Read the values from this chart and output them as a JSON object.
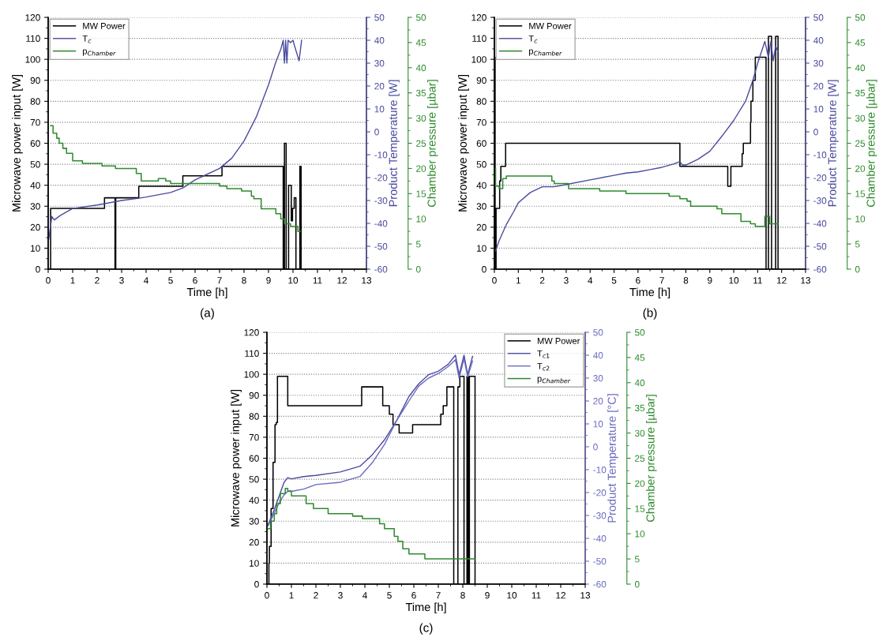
{
  "chart_data": [
    {
      "type": "line",
      "xlabel": "Time [h]",
      "ylabel": "Microwave power input [W]",
      "y2label": "Product Temperature [W]",
      "y3label": "Chamber pressure [µbar]",
      "annotations": [
        "(a)"
      ],
      "xlim": [
        0,
        13
      ],
      "xticks": [
        0,
        1,
        2,
        3,
        4,
        5,
        6,
        7,
        8,
        9,
        10,
        11,
        12,
        13
      ],
      "ylim": [
        0,
        120
      ],
      "yticks": [
        0,
        10,
        20,
        30,
        40,
        50,
        60,
        70,
        80,
        90,
        100,
        110,
        120
      ],
      "y2lim": [
        -60,
        50
      ],
      "y2ticks": [
        -60,
        -50,
        -40,
        -30,
        -20,
        -10,
        0,
        10,
        20,
        30,
        40,
        50
      ],
      "y3lim": [
        0,
        50
      ],
      "y3ticks": [
        0,
        5,
        10,
        15,
        20,
        25,
        30,
        35,
        40,
        45,
        50
      ],
      "grid": "y",
      "legend": "top left",
      "series": [
        {
          "name": "MW Power",
          "type": "step",
          "color": "#000000",
          "x": [
            0,
            0.1,
            2.3,
            2.73,
            2.76,
            3.7,
            5.5,
            7.1,
            9.6,
            9.65,
            9.72,
            9.82,
            9.93,
            9.98,
            10.05,
            10.12,
            10.28,
            10.33
          ],
          "values": [
            0,
            29,
            34,
            0,
            34,
            39.5,
            44.5,
            49,
            0,
            60,
            0,
            40,
            23,
            29,
            34,
            0,
            49,
            0
          ]
        },
        {
          "name": "T$_{c}$",
          "axis": "y2",
          "color": "#4a4aa0",
          "x": [
            0.02,
            0.15,
            0.25,
            0.5,
            1,
            2,
            3,
            3.7,
            4,
            5,
            5.5,
            6,
            7,
            7.5,
            8,
            8.5,
            9,
            9.3,
            9.5,
            9.6,
            9.65,
            9.7,
            9.75,
            9.8,
            9.9,
            10,
            10.05,
            10.25,
            10.35
          ],
          "values": [
            -47,
            -37,
            -38.5,
            -36.5,
            -33.5,
            -32,
            -30,
            -29,
            -28.5,
            -26.5,
            -24.5,
            -21,
            -16,
            -11.5,
            -4,
            6.5,
            20.5,
            30.5,
            36,
            40,
            30,
            40,
            30,
            40,
            39,
            40,
            38,
            31,
            40
          ]
        },
        {
          "name": "p$_{Chamber}$",
          "type": "step",
          "axis": "y3",
          "color": "#2e8b2e",
          "x": [
            0.1,
            0.2,
            0.35,
            0.45,
            0.6,
            0.75,
            1,
            1.4,
            2.2,
            2.75,
            3.6,
            3.8,
            4.5,
            4.8,
            5,
            6.2,
            7,
            7.3,
            7.9,
            8.3,
            8.4,
            8.7,
            9.3,
            9.5,
            9.65,
            9.9,
            10.2,
            10.3
          ],
          "values": [
            28.5,
            27,
            26,
            25,
            24,
            23,
            21.5,
            21,
            20.5,
            20,
            19,
            17.5,
            18,
            17.5,
            17,
            17,
            16.5,
            16,
            15.5,
            14.5,
            14,
            12,
            11,
            10,
            9,
            8.5,
            7.5,
            7.5
          ]
        }
      ]
    },
    {
      "type": "line",
      "xlabel": "Time [h]",
      "ylabel": "Microwave power input [W]",
      "y2label": "Product Temperature [W]",
      "y3label": "Chamber pressure [µbar]",
      "annotations": [
        "(b)"
      ],
      "xlim": [
        0,
        13
      ],
      "xticks": [
        0,
        1,
        2,
        3,
        4,
        5,
        6,
        7,
        8,
        9,
        10,
        11,
        12,
        13
      ],
      "ylim": [
        0,
        120
      ],
      "yticks": [
        0,
        10,
        20,
        30,
        40,
        50,
        60,
        70,
        80,
        90,
        100,
        110,
        120
      ],
      "y2lim": [
        -60,
        50
      ],
      "y2ticks": [
        -60,
        -50,
        -40,
        -30,
        -20,
        -10,
        0,
        10,
        20,
        30,
        40,
        50
      ],
      "y3lim": [
        0,
        50
      ],
      "y3ticks": [
        0,
        5,
        10,
        15,
        20,
        25,
        30,
        35,
        40,
        45,
        50
      ],
      "grid": "y",
      "legend": "top left",
      "series": [
        {
          "name": "MW Power",
          "type": "step",
          "color": "#000000",
          "x": [
            0,
            0.03,
            0.07,
            0.22,
            0.27,
            0.47,
            7.75,
            9.75,
            9.88,
            10.35,
            10.4,
            10.7,
            10.72,
            10.8,
            10.9,
            11.35,
            11.45,
            11.58,
            11.75,
            11.85
          ],
          "values": [
            101,
            0,
            29,
            42,
            49,
            60,
            49,
            39.5,
            49,
            55,
            60,
            70,
            80,
            90,
            101,
            0,
            111,
            0,
            111,
            0
          ]
        },
        {
          "name": "T$_{c}$",
          "axis": "y2",
          "color": "#4a4aa0",
          "x": [
            0.05,
            0.2,
            0.5,
            0.8,
            1,
            1.5,
            2,
            2.5,
            3,
            4,
            5,
            5.5,
            6,
            6.5,
            7,
            7.5,
            7.75,
            7.85,
            8,
            8.5,
            9,
            9.5,
            10,
            10.5,
            10.8,
            11,
            11.3,
            11.45,
            11.55,
            11.65,
            11.75,
            11.85
          ],
          "values": [
            -52,
            -47.5,
            -40.5,
            -35,
            -31,
            -26.5,
            -24,
            -24,
            -23,
            -21,
            -19,
            -18,
            -17.5,
            -16.5,
            -15.5,
            -14,
            -13,
            -14.5,
            -14.5,
            -12,
            -8.5,
            -2,
            5,
            13.5,
            22.5,
            30,
            39.5,
            32.5,
            39.5,
            31,
            37.5,
            35
          ]
        },
        {
          "name": "p$_{Chamber}$",
          "type": "step",
          "axis": "y3",
          "color": "#2e8b2e",
          "x": [
            0,
            0.05,
            0.2,
            0.35,
            0.5,
            1,
            2.05,
            2.4,
            2.5,
            3.1,
            4.4,
            5.2,
            5.5,
            7.3,
            7.75,
            8.05,
            8.2,
            9.2,
            9.3,
            9.5,
            9.7,
            10.3,
            10.7,
            10.9,
            11.3,
            11.5,
            11.85
          ],
          "values": [
            20,
            16.5,
            16,
            18,
            18.5,
            18.5,
            18.5,
            17.5,
            17,
            16,
            15.5,
            15.5,
            15,
            14.5,
            14,
            13.5,
            12.5,
            12.5,
            12,
            11,
            11,
            9.5,
            9,
            8.5,
            10.5,
            9,
            9
          ]
        }
      ]
    },
    {
      "type": "line",
      "xlabel": "Time [h]",
      "ylabel": "Microwave power input [W]",
      "y2label": "Product Temperature [°C]",
      "y3label": "Chamber pressure [µbar]",
      "annotations": [
        "(c)"
      ],
      "xlim": [
        0,
        13
      ],
      "xticks": [
        0,
        1,
        2,
        3,
        4,
        5,
        6,
        7,
        8,
        9,
        10,
        11,
        12,
        13
      ],
      "ylim": [
        0,
        120
      ],
      "yticks": [
        0,
        10,
        20,
        30,
        40,
        50,
        60,
        70,
        80,
        90,
        100,
        110,
        120
      ],
      "y2lim": [
        -60,
        50
      ],
      "y2ticks": [
        -60,
        -50,
        -40,
        -30,
        -20,
        -10,
        0,
        10,
        20,
        30,
        40,
        50
      ],
      "y3lim": [
        0,
        50
      ],
      "y3ticks": [
        0,
        5,
        10,
        15,
        20,
        25,
        30,
        35,
        40,
        45,
        50
      ],
      "grid": "y",
      "legend": "top right",
      "series": [
        {
          "name": "MW Power",
          "type": "step",
          "color": "#000000",
          "x": [
            0,
            0.08,
            0.1,
            0.17,
            0.25,
            0.33,
            0.38,
            0.43,
            0.85,
            3.87,
            4.73,
            5,
            5.15,
            5.4,
            5.95,
            7.1,
            7.2,
            7.35,
            7.63,
            7.8,
            7.88,
            8.05,
            8.17,
            8.22,
            8.27,
            8.5
          ],
          "values": [
            0,
            10,
            18,
            36,
            58,
            76,
            77,
            99,
            85,
            94,
            85,
            81,
            76,
            72,
            76,
            81,
            85,
            94,
            0,
            94,
            99,
            0,
            99,
            0,
            99,
            0
          ]
        },
        {
          "name": "T$_{c1}$",
          "axis": "y2",
          "color": "#4a4aa0",
          "x": [
            0.05,
            0.3,
            0.5,
            0.7,
            0.85,
            1,
            1.5,
            2,
            3,
            3.8,
            4.3,
            4.8,
            5.3,
            5.8,
            6.2,
            6.6,
            7,
            7.4,
            7.7,
            7.85,
            8.05,
            8.2,
            8.4
          ],
          "values": [
            -34,
            -27.5,
            -21.5,
            -15.5,
            -13.5,
            -14,
            -13,
            -12.5,
            -11,
            -8.5,
            -3.5,
            3,
            11.5,
            22,
            27.5,
            31.5,
            33,
            36,
            40,
            31.5,
            40,
            31.5,
            39.5
          ]
        },
        {
          "name": "T$_{c2}$",
          "axis": "y2",
          "color": "#6a6ac0",
          "x": [
            0.05,
            0.3,
            0.5,
            0.7,
            0.85,
            1,
            1.5,
            2,
            3,
            3.8,
            4.3,
            4.8,
            5.3,
            5.8,
            6.2,
            6.6,
            7,
            7.4,
            7.7,
            7.85,
            8.05,
            8.2,
            8.4
          ],
          "values": [
            -34.5,
            -29,
            -24.5,
            -21,
            -19.5,
            -19.5,
            -18.5,
            -16.5,
            -15.5,
            -13,
            -7,
            1,
            11.5,
            20,
            26.5,
            30,
            32,
            35,
            38,
            30,
            38.5,
            30.5,
            37.5
          ]
        },
        {
          "name": "p$_{Chamber}$",
          "type": "step",
          "axis": "y3",
          "color": "#2e8b2e",
          "x": [
            0.05,
            0.15,
            0.3,
            0.4,
            0.55,
            0.75,
            0.85,
            1,
            1.6,
            1.9,
            2.5,
            3.5,
            3.9,
            4.6,
            4.8,
            5.2,
            5.35,
            5.55,
            5.8,
            6.1,
            6.45,
            8.5
          ],
          "values": [
            11,
            12.5,
            14,
            16,
            18,
            19,
            18.5,
            17.5,
            16,
            15,
            14,
            13.5,
            13,
            12,
            11,
            9.5,
            8.5,
            7,
            6,
            6,
            5,
            5
          ]
        }
      ]
    }
  ]
}
